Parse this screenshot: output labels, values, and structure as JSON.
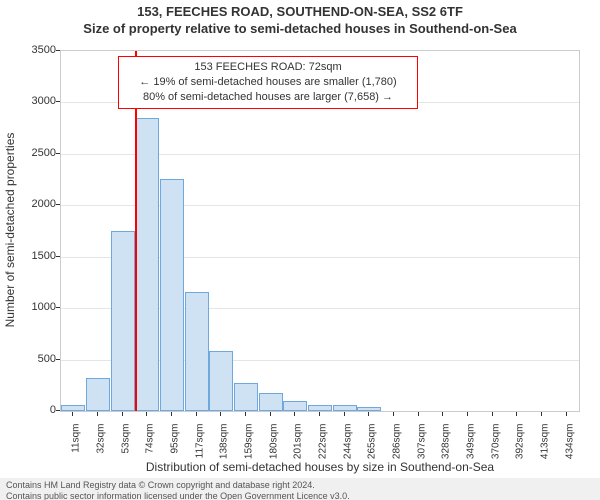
{
  "titles": {
    "line1": "153, FEECHES ROAD, SOUTHEND-ON-SEA, SS2 6TF",
    "line2": "Size of property relative to semi-detached houses in Southend-on-Sea"
  },
  "chart": {
    "type": "histogram",
    "ylabel": "Number of semi-detached properties",
    "xlabel": "Distribution of semi-detached houses by size in Southend-on-Sea",
    "ylim": [
      0,
      3500
    ],
    "ytick_step": 500,
    "bar_fill": "#cfe2f3",
    "bar_border": "#6fa8dc",
    "grid_color": "#e5e5e5",
    "axis_color": "#cccccc",
    "reference_line": {
      "x_index": 3,
      "color": "#ff0000"
    },
    "xticks": [
      "11sqm",
      "32sqm",
      "53sqm",
      "74sqm",
      "95sqm",
      "117sqm",
      "138sqm",
      "159sqm",
      "180sqm",
      "201sqm",
      "222sqm",
      "244sqm",
      "265sqm",
      "286sqm",
      "307sqm",
      "328sqm",
      "349sqm",
      "370sqm",
      "392sqm",
      "413sqm",
      "434sqm"
    ],
    "values": [
      60,
      320,
      1750,
      2850,
      2260,
      1160,
      580,
      270,
      180,
      100,
      60,
      60,
      40,
      0,
      0,
      0,
      0,
      0,
      0,
      0,
      0
    ]
  },
  "annotation": {
    "border_color": "#ff0000",
    "line1": "153 FEECHES ROAD: 72sqm",
    "line2": "← 19% of semi-detached houses are smaller (1,780)",
    "line3": "80% of semi-detached houses are larger (7,658) →"
  },
  "footer": {
    "line1": "Contains HM Land Registry data © Crown copyright and database right 2024.",
    "line2": "Contains public sector information licensed under the Open Government Licence v3.0."
  }
}
